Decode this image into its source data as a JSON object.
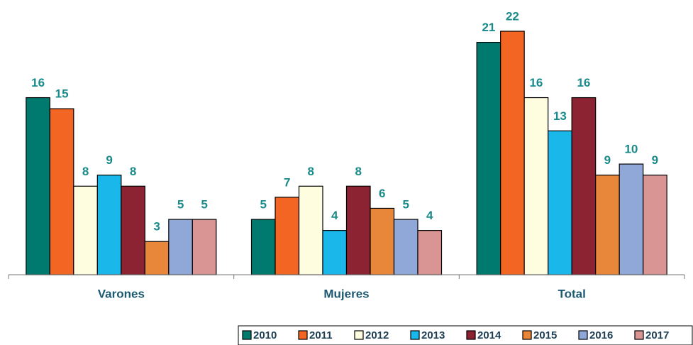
{
  "chart_data": {
    "type": "bar",
    "categories": [
      "Varones",
      "Mujeres",
      "Total"
    ],
    "series": [
      {
        "name": "2010",
        "color": "#007a6e",
        "values": [
          16,
          5,
          21
        ]
      },
      {
        "name": "2011",
        "color": "#f26522",
        "values": [
          15,
          7,
          22
        ]
      },
      {
        "name": "2012",
        "color": "#fffde0",
        "values": [
          8,
          8,
          16
        ]
      },
      {
        "name": "2013",
        "color": "#1ab8ea",
        "values": [
          9,
          4,
          13
        ]
      },
      {
        "name": "2014",
        "color": "#8b2332",
        "values": [
          8,
          8,
          16
        ]
      },
      {
        "name": "2015",
        "color": "#e8873a",
        "values": [
          3,
          6,
          9
        ]
      },
      {
        "name": "2016",
        "color": "#8fa8d8",
        "values": [
          5,
          5,
          10
        ]
      },
      {
        "name": "2017",
        "color": "#d99494",
        "values": [
          5,
          4,
          9
        ]
      }
    ],
    "ylim": [
      0,
      22
    ],
    "legend": "bottom-right"
  }
}
